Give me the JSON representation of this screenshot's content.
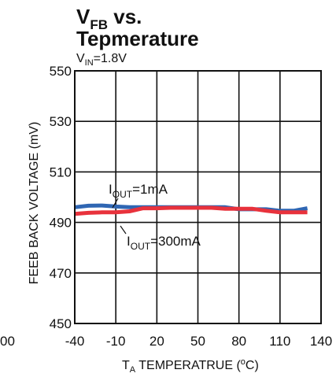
{
  "chart_data": {
    "type": "line",
    "title": {
      "line1_main": "V",
      "line1_sub": "FB",
      "line1_rest": " vs.",
      "line2": "Tepmerature"
    },
    "subtitle": {
      "main": "V",
      "sub": "IN",
      "rest": "=1.8V"
    },
    "xlabel": {
      "main": "T",
      "sub": "A",
      "rest": " TEMPERATRUE (",
      "sup": "o",
      "end": "C)"
    },
    "ylabel": "FEEB BACK VOLTAGE (mV)",
    "clipped_left_label": "00",
    "xlim": [
      -40,
      140
    ],
    "ylim": [
      450,
      550
    ],
    "x_ticks": [
      -40,
      -10,
      20,
      50,
      80,
      110,
      140
    ],
    "x_tick_labels": [
      "-40",
      "-10",
      "20",
      "50",
      "80",
      "110",
      "140"
    ],
    "y_ticks": [
      450,
      470,
      490,
      510,
      530,
      550
    ],
    "y_tick_labels": [
      "450",
      "470",
      "490",
      "510",
      "530",
      "550"
    ],
    "grid": true,
    "series": [
      {
        "name": "IOUT=1mA",
        "label_main": "I",
        "label_sub": "OUT",
        "label_rest": "=1mA",
        "color": "#2f66b3",
        "x": [
          -40,
          -30,
          -20,
          -10,
          0,
          10,
          20,
          30,
          40,
          50,
          60,
          70,
          80,
          90,
          100,
          110,
          120,
          130
        ],
        "y": [
          496.0,
          496.6,
          496.7,
          496.3,
          496.0,
          496.0,
          496.0,
          496.0,
          496.0,
          496.0,
          496.0,
          496.0,
          495.2,
          495.2,
          495.2,
          494.6,
          494.6,
          495.6
        ]
      },
      {
        "name": "IOUT=300mA",
        "label_main": "I",
        "label_sub": "OUT",
        "label_rest": "=300mA",
        "color": "#e8323c",
        "x": [
          -40,
          -30,
          -20,
          -10,
          0,
          10,
          20,
          30,
          40,
          50,
          60,
          70,
          80,
          90,
          100,
          110,
          120,
          130
        ],
        "y": [
          493.4,
          493.8,
          494.0,
          494.0,
          494.4,
          495.6,
          495.6,
          495.8,
          495.8,
          495.8,
          495.8,
          495.4,
          495.4,
          495.4,
          494.6,
          494.0,
          494.0,
          494.0
        ]
      }
    ]
  }
}
